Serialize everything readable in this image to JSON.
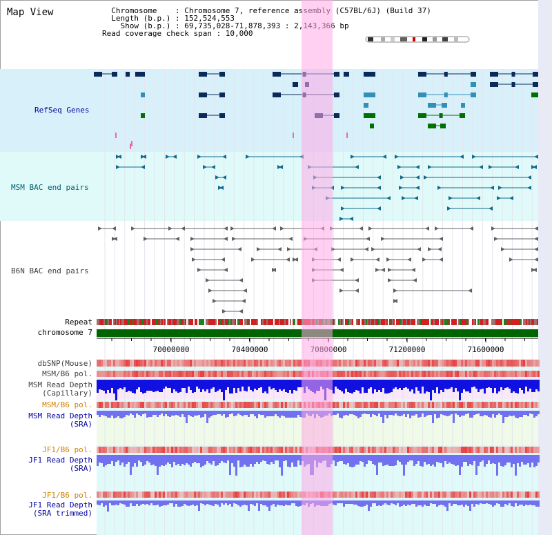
{
  "page": {
    "title": "Map View"
  },
  "header": {
    "info_lines": [
      "  Chromosome    : Chromosome 7, reference assembly (C57BL/6J) (Build 37)",
      "  Length (b.p.) : 152,524,553",
      "    Show (b.p.) : 69,735,028-71,878,393 : 2,143,366 bp",
      "Read coverage check span : 10,000"
    ]
  },
  "tracks": {
    "refseq": "RefSeq Genes",
    "msm_bac": "MSM BAC end pairs",
    "b6n_bac": "B6N BAC end pairs",
    "repeat": "Repeat",
    "chromosome": "chromosome 7",
    "dbsnp": "dbSNP(Mouse)",
    "msm_b6_pol_1": "MSM/B6 pol.",
    "msm_read_depth_cap_1": "MSM Read Depth",
    "msm_read_depth_cap_2": "(Capillary)",
    "msm_b6_pol_2": "MSM/B6 pol.",
    "msm_read_depth_sra_1": "MSM Read Depth",
    "msm_read_depth_sra_2": "(SRA)",
    "jf1_b6_pol_1": "JF1/B6 pol.",
    "jf1_read_depth_sra_1": "JF1 Read Depth",
    "jf1_read_depth_sra_2": "(SRA)",
    "jf1_b6_pol_2": "JF1/B6 pol.",
    "jf1_read_depth_trim_1": "JF1 Read Depth",
    "jf1_read_depth_trim_2": "(SRA trimmed)"
  },
  "axis": {
    "ticks": [
      "70000000",
      "70400000",
      "70800000",
      "71200000",
      "71600000"
    ]
  },
  "colors": {
    "refseq_bg": "#d8f0fa",
    "msm_bg": "#e0fafa",
    "highlight": "#ffb0e6",
    "gene_dark": "#0a2a5a",
    "gene_mid": "#3090b8",
    "gene_green": "#007000",
    "bac_msm": "#106a8a",
    "bac_b6n": "#606060",
    "chrom_bar": "#006400",
    "snp_red": "#e84040",
    "depth_blue_cap": "#1010e0",
    "depth_blue_sra": "#7070f0",
    "label_blue": "#0000a0",
    "label_teal": "#006070",
    "label_orange": "#d08000"
  }
}
